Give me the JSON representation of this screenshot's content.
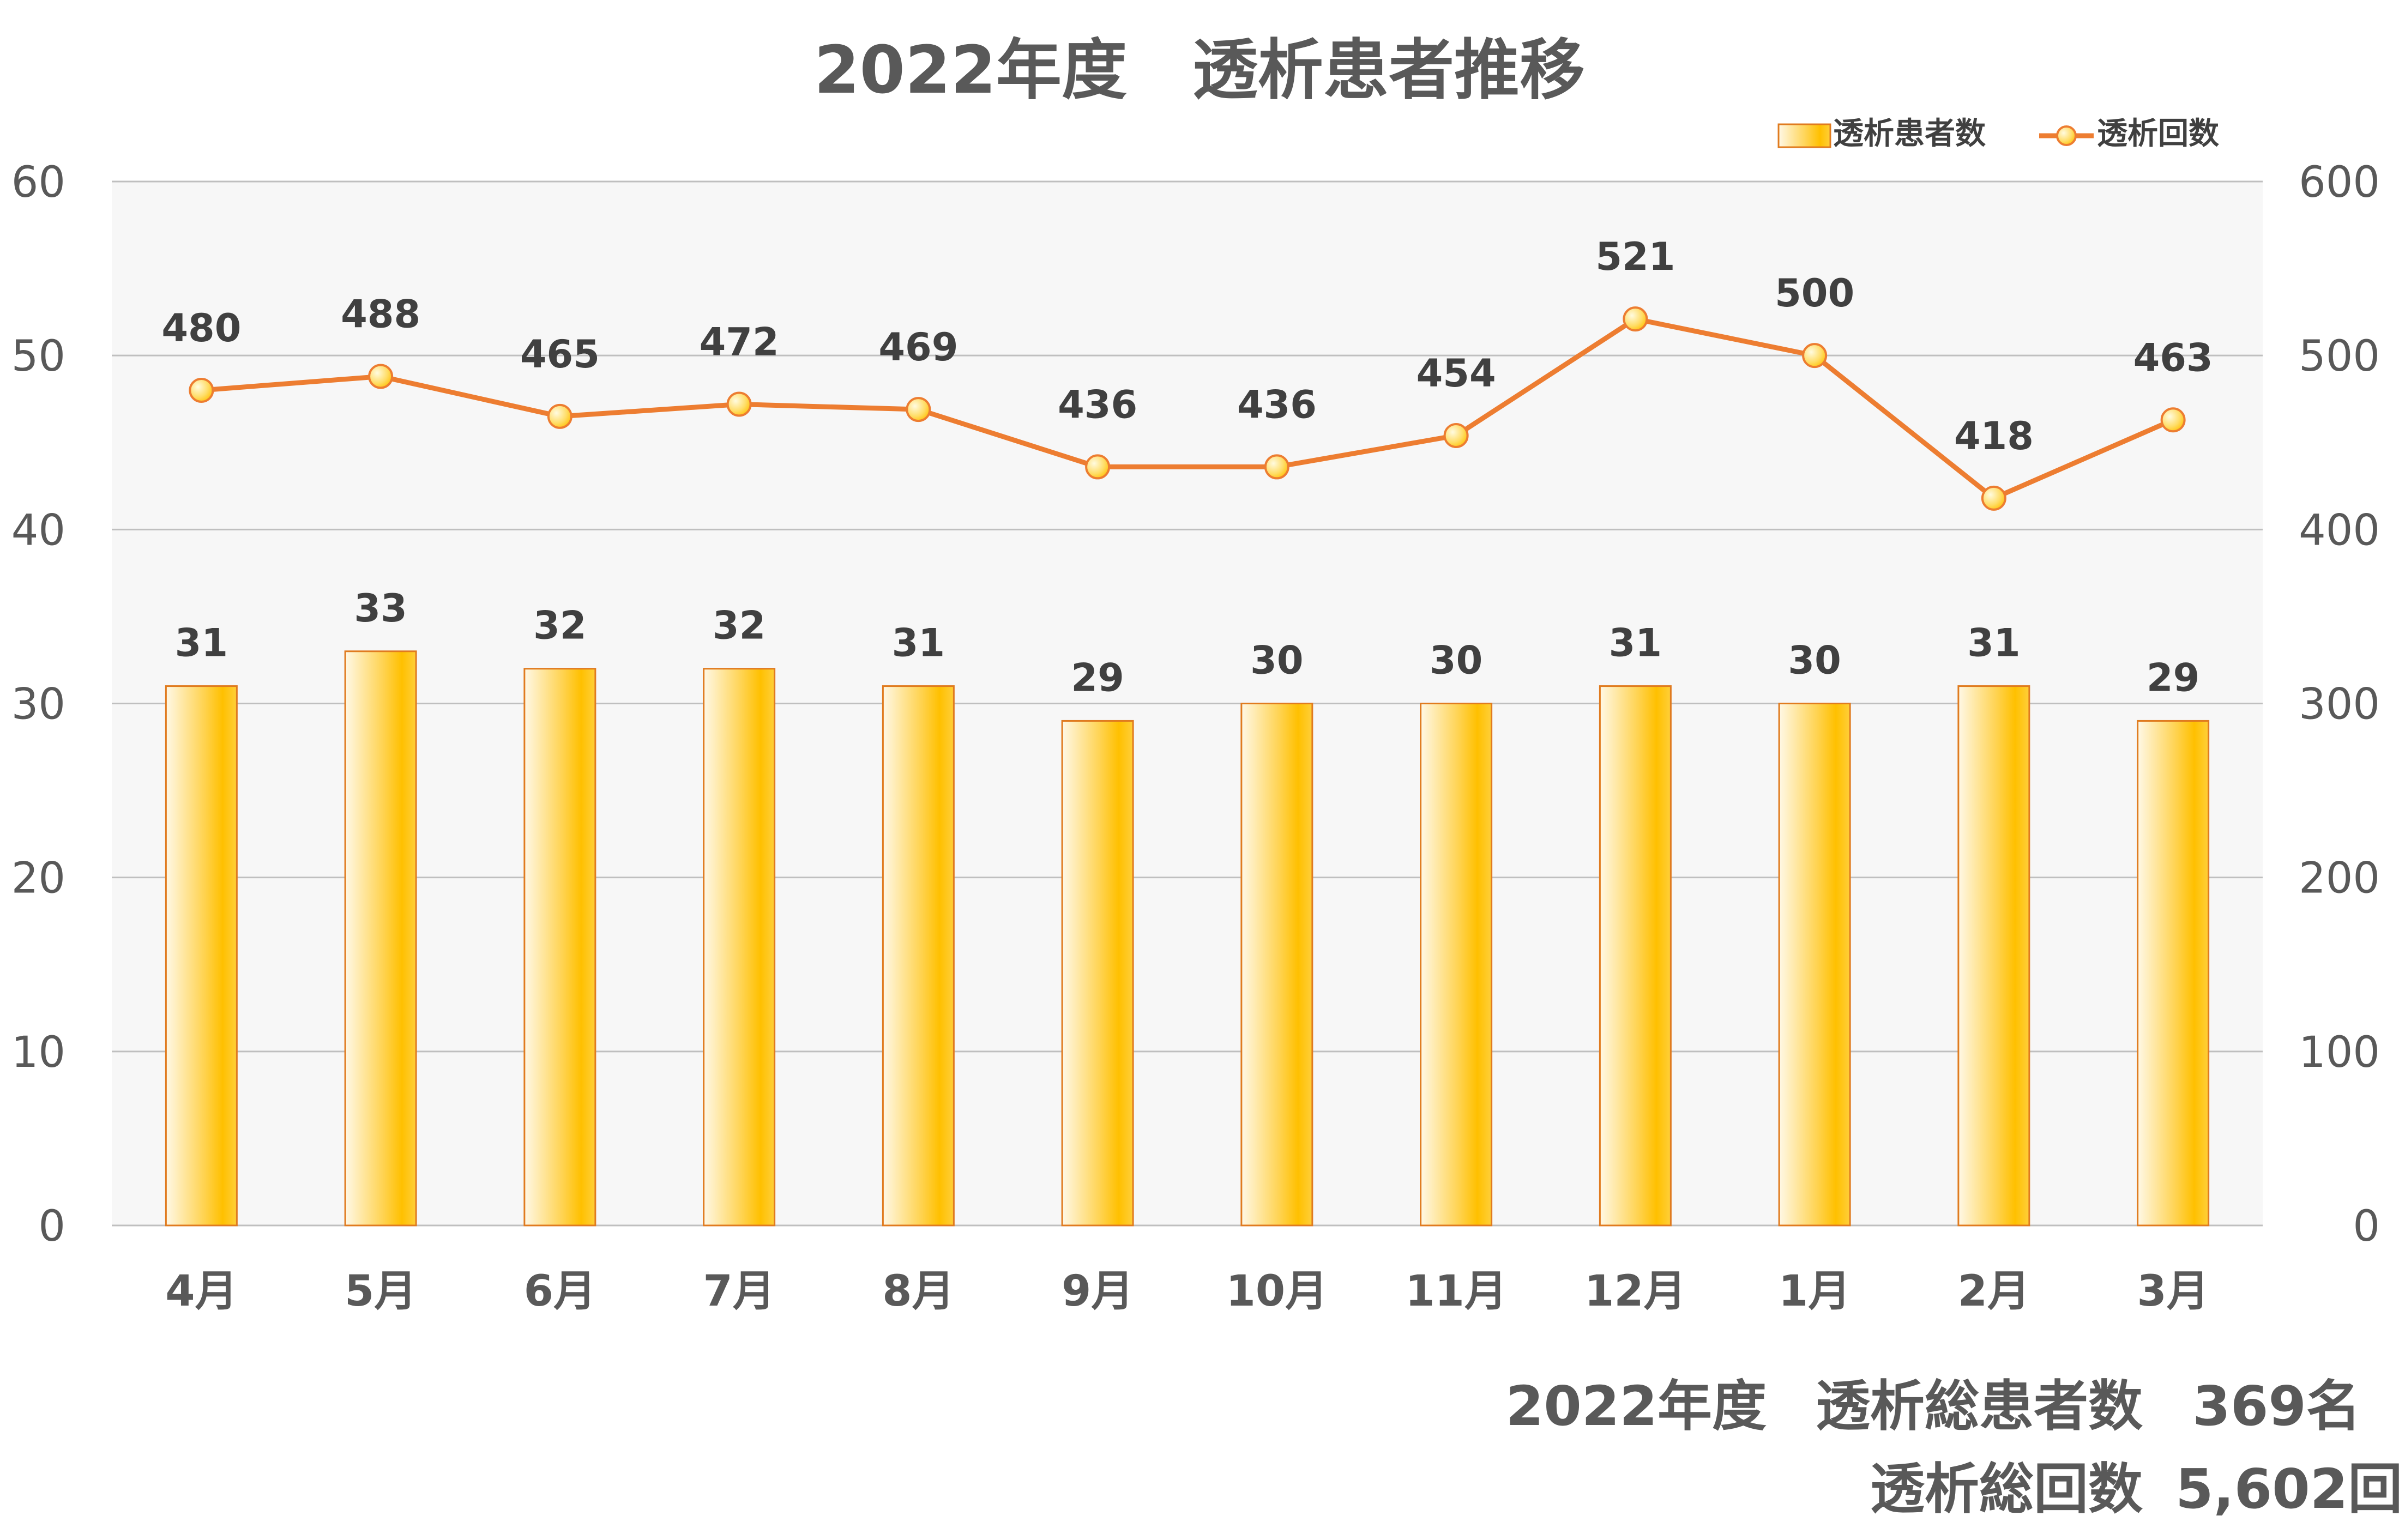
{
  "chart_data": {
    "type": "bar+line",
    "title": "2022年度　透析患者推移",
    "categories": [
      "4月",
      "5月",
      "6月",
      "7月",
      "8月",
      "9月",
      "10月",
      "11月",
      "12月",
      "1月",
      "2月",
      "3月"
    ],
    "series": [
      {
        "name": "透析患者数",
        "type": "bar",
        "axis": "left",
        "values": [
          31,
          33,
          32,
          32,
          31,
          29,
          30,
          30,
          31,
          30,
          31,
          29
        ]
      },
      {
        "name": "透析回数",
        "type": "line",
        "axis": "right",
        "values": [
          480,
          488,
          465,
          472,
          469,
          436,
          436,
          454,
          521,
          500,
          418,
          463
        ]
      }
    ],
    "y_left": {
      "min": 0,
      "max": 60,
      "ticks": [
        0,
        10,
        20,
        30,
        40,
        50,
        60
      ]
    },
    "y_right": {
      "min": 0,
      "max": 600,
      "ticks": [
        0,
        100,
        200,
        300,
        400,
        500,
        600
      ]
    },
    "grid": true,
    "legend": "top-right",
    "colors": {
      "bar_light": "#fff4d6",
      "bar_dark": "#ffc000",
      "bar_border": "#e07b1f",
      "line": "#ed7d31",
      "marker_light": "#fff2b3",
      "marker_dark": "#ffc000",
      "plot_bg": "#f7f7f7",
      "grid": "#bfbfbf"
    }
  },
  "summary": {
    "line1": {
      "year": "2022年度",
      "label": "透析総患者数",
      "value": "369名"
    },
    "line2": {
      "label": "透析総回数",
      "value": "5,602回"
    }
  }
}
